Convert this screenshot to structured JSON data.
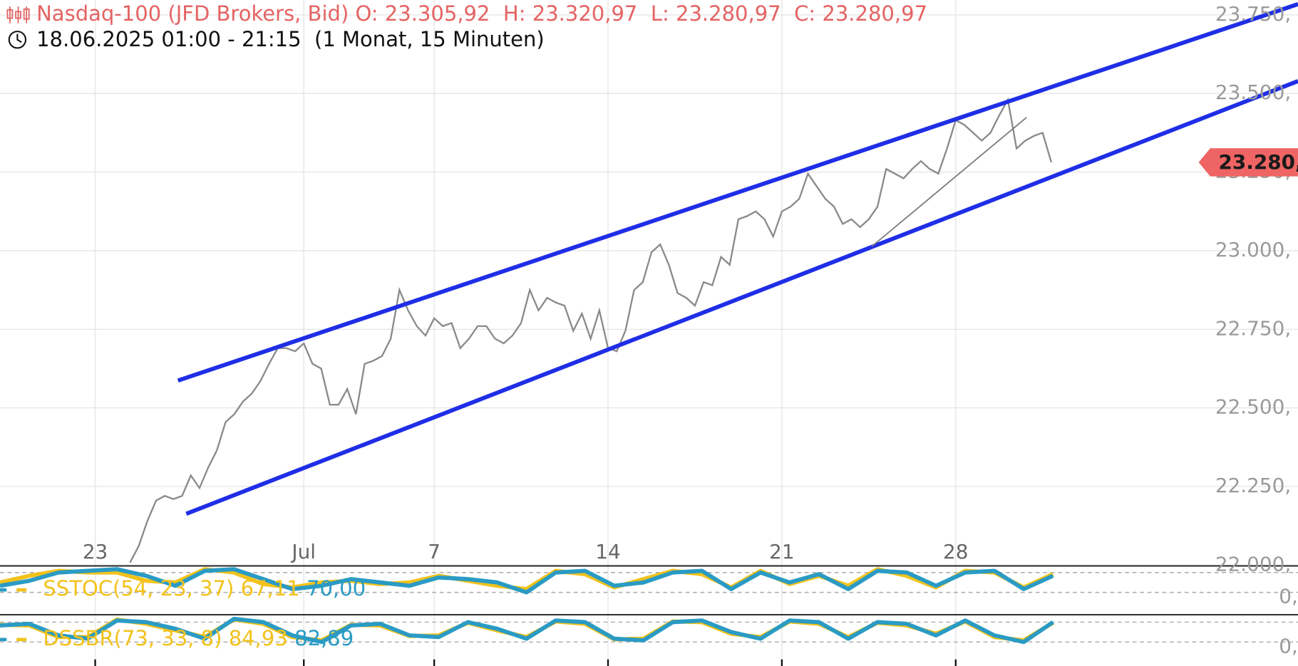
{
  "chart_data": [
    {
      "type": "line",
      "title": "Nasdaq-100 (JFD Brokers, Bid) O: 23.305,92  H: 23.320,97  L: 23.280,97  C: 23.280,97",
      "subtitle": "18.06.2025 01:00 - 21:15  (1 Monat, 15 Minuten)",
      "last_price_label": "23.280,",
      "color": "#8a8a8a",
      "categories": [
        "23",
        null,
        null,
        null,
        null,
        null,
        null,
        null,
        null,
        null,
        null,
        null,
        null,
        null,
        null,
        null,
        null,
        null,
        null,
        null,
        null,
        null,
        null,
        null,
        "Jul",
        null,
        null,
        null,
        null,
        null,
        null,
        null,
        null,
        null,
        null,
        null,
        null,
        null,
        null,
        "7",
        null,
        null,
        null,
        null,
        null,
        null,
        null,
        null,
        null,
        null,
        null,
        null,
        null,
        null,
        null,
        null,
        null,
        null,
        null,
        "14",
        null,
        null,
        null,
        null,
        null,
        null,
        null,
        null,
        null,
        null,
        null,
        null,
        null,
        null,
        null,
        null,
        null,
        null,
        null,
        "21",
        null,
        null,
        null,
        null,
        null,
        null,
        null,
        null,
        null,
        null,
        null,
        null,
        null,
        null,
        null,
        null,
        null,
        null,
        null,
        "28",
        null,
        null,
        null,
        null,
        null,
        null,
        null,
        null,
        null,
        null,
        null
      ],
      "values": [
        null,
        null,
        null,
        null,
        22008,
        22060,
        22140,
        22205,
        22220,
        22210,
        22220,
        22285,
        22245,
        22310,
        22365,
        22455,
        22480,
        22520,
        22545,
        22585,
        22640,
        22690,
        22690,
        22680,
        22705,
        22640,
        22625,
        22510,
        22510,
        22560,
        22480,
        22640,
        22650,
        22665,
        22720,
        22875,
        22810,
        22760,
        22730,
        22785,
        22760,
        22770,
        22690,
        22720,
        22760,
        22760,
        22720,
        22705,
        22730,
        22770,
        22875,
        22810,
        22850,
        22835,
        22825,
        22745,
        22800,
        22720,
        22810,
        22690,
        22680,
        22745,
        22875,
        22900,
        22995,
        23020,
        22955,
        22865,
        22850,
        22825,
        22900,
        22890,
        22980,
        22955,
        23100,
        23110,
        23125,
        23100,
        23045,
        23125,
        23140,
        23165,
        23245,
        23205,
        23165,
        23140,
        23085,
        23100,
        23075,
        23100,
        23140,
        23260,
        23245,
        23230,
        23260,
        23285,
        23260,
        23245,
        23325,
        23415,
        23400,
        23375,
        23350,
        23375,
        23430,
        23480,
        23325,
        23350,
        23365,
        23375,
        23280.97
      ],
      "ylim": [
        22000,
        23750
      ],
      "yticks": [
        {
          "value": 23750,
          "label": "23.750,"
        },
        {
          "value": 23500,
          "label": "23.500,"
        },
        {
          "value": 23250,
          "label": "23.250,"
        },
        {
          "value": 23000,
          "label": "23.000,"
        },
        {
          "value": 22750,
          "label": "22.750,"
        },
        {
          "value": 22500,
          "label": "22.500,"
        },
        {
          "value": 22250,
          "label": "22.250,"
        },
        {
          "value": 22000,
          "label": "22.000,"
        }
      ],
      "grid": true
    },
    {
      "type": "oscillator",
      "title": "SSTOC(54, 23, 37)",
      "ylim": [
        -40,
        100
      ],
      "levels": [
        80,
        20
      ],
      "yticks": [
        {
          "value": 20,
          "label": "0,"
        }
      ],
      "series": [
        {
          "name": "67,11",
          "color": "#f2c21b",
          "values": [
            50,
            70,
            85,
            80,
            80,
            55,
            50,
            90,
            80,
            45,
            35,
            50,
            55,
            45,
            50,
            70,
            55,
            40,
            30,
            85,
            75,
            35,
            60,
            85,
            75,
            35,
            85,
            45,
            70,
            40,
            90,
            70,
            35,
            85,
            80,
            35,
            75
          ]
        },
        {
          "name": "70,00",
          "color": "#2a9bc4",
          "values": [
            40,
            55,
            80,
            85,
            90,
            70,
            40,
            85,
            90,
            60,
            30,
            40,
            60,
            50,
            40,
            65,
            60,
            50,
            20,
            80,
            85,
            40,
            50,
            80,
            85,
            30,
            80,
            50,
            75,
            30,
            85,
            80,
            40,
            80,
            85,
            30,
            70
          ]
        }
      ]
    },
    {
      "type": "oscillator",
      "title": "DSSBR(73, 33, 8)",
      "ylim": [
        -40,
        100
      ],
      "levels": [
        80,
        20
      ],
      "yticks": [
        {
          "value": 20,
          "label": "0,"
        }
      ],
      "series": [
        {
          "name": "84,93",
          "color": "#f2c21b",
          "values": [
            72,
            70,
            35,
            35,
            88,
            75,
            55,
            35,
            88,
            75,
            35,
            25,
            72,
            70,
            38,
            40,
            78,
            55,
            35,
            82,
            75,
            28,
            30,
            82,
            80,
            45,
            35,
            82,
            75,
            35,
            78,
            70,
            45,
            82,
            35,
            25,
            78
          ]
        },
        {
          "name": "82,89",
          "color": "#2a9bc4",
          "values": [
            70,
            75,
            40,
            30,
            85,
            80,
            60,
            30,
            90,
            80,
            40,
            20,
            70,
            75,
            40,
            35,
            80,
            60,
            30,
            85,
            80,
            30,
            25,
            80,
            85,
            50,
            30,
            85,
            80,
            30,
            80,
            75,
            40,
            85,
            40,
            20,
            80
          ]
        }
      ]
    }
  ]
}
